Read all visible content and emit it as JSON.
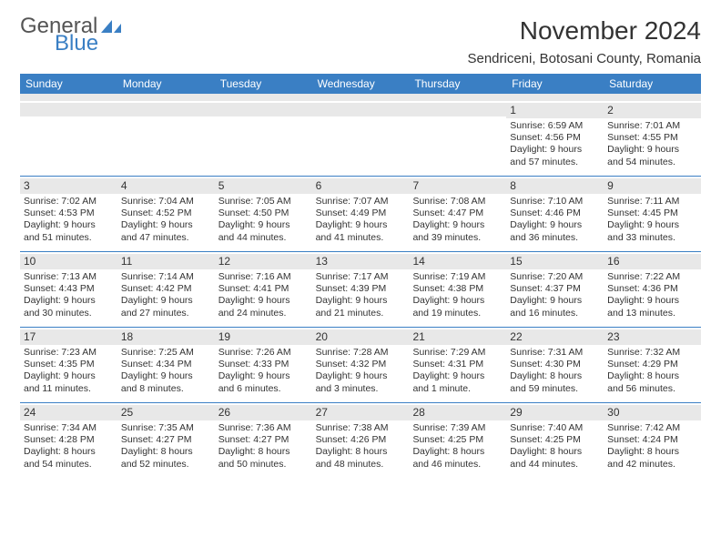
{
  "logo": {
    "word1": "General",
    "word2": "Blue"
  },
  "title": "November 2024",
  "location": "Sendriceni, Botosani County, Romania",
  "colors": {
    "header_bg": "#3a7fc4",
    "header_text": "#ffffff",
    "daynum_bg": "#e8e8e8",
    "border": "#3a7fc4",
    "text": "#333333"
  },
  "daynames": [
    "Sunday",
    "Monday",
    "Tuesday",
    "Wednesday",
    "Thursday",
    "Friday",
    "Saturday"
  ],
  "weeks": [
    [
      null,
      null,
      null,
      null,
      null,
      {
        "n": "1",
        "sr": "Sunrise: 6:59 AM",
        "ss": "Sunset: 4:56 PM",
        "d1": "Daylight: 9 hours",
        "d2": "and 57 minutes."
      },
      {
        "n": "2",
        "sr": "Sunrise: 7:01 AM",
        "ss": "Sunset: 4:55 PM",
        "d1": "Daylight: 9 hours",
        "d2": "and 54 minutes."
      }
    ],
    [
      {
        "n": "3",
        "sr": "Sunrise: 7:02 AM",
        "ss": "Sunset: 4:53 PM",
        "d1": "Daylight: 9 hours",
        "d2": "and 51 minutes."
      },
      {
        "n": "4",
        "sr": "Sunrise: 7:04 AM",
        "ss": "Sunset: 4:52 PM",
        "d1": "Daylight: 9 hours",
        "d2": "and 47 minutes."
      },
      {
        "n": "5",
        "sr": "Sunrise: 7:05 AM",
        "ss": "Sunset: 4:50 PM",
        "d1": "Daylight: 9 hours",
        "d2": "and 44 minutes."
      },
      {
        "n": "6",
        "sr": "Sunrise: 7:07 AM",
        "ss": "Sunset: 4:49 PM",
        "d1": "Daylight: 9 hours",
        "d2": "and 41 minutes."
      },
      {
        "n": "7",
        "sr": "Sunrise: 7:08 AM",
        "ss": "Sunset: 4:47 PM",
        "d1": "Daylight: 9 hours",
        "d2": "and 39 minutes."
      },
      {
        "n": "8",
        "sr": "Sunrise: 7:10 AM",
        "ss": "Sunset: 4:46 PM",
        "d1": "Daylight: 9 hours",
        "d2": "and 36 minutes."
      },
      {
        "n": "9",
        "sr": "Sunrise: 7:11 AM",
        "ss": "Sunset: 4:45 PM",
        "d1": "Daylight: 9 hours",
        "d2": "and 33 minutes."
      }
    ],
    [
      {
        "n": "10",
        "sr": "Sunrise: 7:13 AM",
        "ss": "Sunset: 4:43 PM",
        "d1": "Daylight: 9 hours",
        "d2": "and 30 minutes."
      },
      {
        "n": "11",
        "sr": "Sunrise: 7:14 AM",
        "ss": "Sunset: 4:42 PM",
        "d1": "Daylight: 9 hours",
        "d2": "and 27 minutes."
      },
      {
        "n": "12",
        "sr": "Sunrise: 7:16 AM",
        "ss": "Sunset: 4:41 PM",
        "d1": "Daylight: 9 hours",
        "d2": "and 24 minutes."
      },
      {
        "n": "13",
        "sr": "Sunrise: 7:17 AM",
        "ss": "Sunset: 4:39 PM",
        "d1": "Daylight: 9 hours",
        "d2": "and 21 minutes."
      },
      {
        "n": "14",
        "sr": "Sunrise: 7:19 AM",
        "ss": "Sunset: 4:38 PM",
        "d1": "Daylight: 9 hours",
        "d2": "and 19 minutes."
      },
      {
        "n": "15",
        "sr": "Sunrise: 7:20 AM",
        "ss": "Sunset: 4:37 PM",
        "d1": "Daylight: 9 hours",
        "d2": "and 16 minutes."
      },
      {
        "n": "16",
        "sr": "Sunrise: 7:22 AM",
        "ss": "Sunset: 4:36 PM",
        "d1": "Daylight: 9 hours",
        "d2": "and 13 minutes."
      }
    ],
    [
      {
        "n": "17",
        "sr": "Sunrise: 7:23 AM",
        "ss": "Sunset: 4:35 PM",
        "d1": "Daylight: 9 hours",
        "d2": "and 11 minutes."
      },
      {
        "n": "18",
        "sr": "Sunrise: 7:25 AM",
        "ss": "Sunset: 4:34 PM",
        "d1": "Daylight: 9 hours",
        "d2": "and 8 minutes."
      },
      {
        "n": "19",
        "sr": "Sunrise: 7:26 AM",
        "ss": "Sunset: 4:33 PM",
        "d1": "Daylight: 9 hours",
        "d2": "and 6 minutes."
      },
      {
        "n": "20",
        "sr": "Sunrise: 7:28 AM",
        "ss": "Sunset: 4:32 PM",
        "d1": "Daylight: 9 hours",
        "d2": "and 3 minutes."
      },
      {
        "n": "21",
        "sr": "Sunrise: 7:29 AM",
        "ss": "Sunset: 4:31 PM",
        "d1": "Daylight: 9 hours",
        "d2": "and 1 minute."
      },
      {
        "n": "22",
        "sr": "Sunrise: 7:31 AM",
        "ss": "Sunset: 4:30 PM",
        "d1": "Daylight: 8 hours",
        "d2": "and 59 minutes."
      },
      {
        "n": "23",
        "sr": "Sunrise: 7:32 AM",
        "ss": "Sunset: 4:29 PM",
        "d1": "Daylight: 8 hours",
        "d2": "and 56 minutes."
      }
    ],
    [
      {
        "n": "24",
        "sr": "Sunrise: 7:34 AM",
        "ss": "Sunset: 4:28 PM",
        "d1": "Daylight: 8 hours",
        "d2": "and 54 minutes."
      },
      {
        "n": "25",
        "sr": "Sunrise: 7:35 AM",
        "ss": "Sunset: 4:27 PM",
        "d1": "Daylight: 8 hours",
        "d2": "and 52 minutes."
      },
      {
        "n": "26",
        "sr": "Sunrise: 7:36 AM",
        "ss": "Sunset: 4:27 PM",
        "d1": "Daylight: 8 hours",
        "d2": "and 50 minutes."
      },
      {
        "n": "27",
        "sr": "Sunrise: 7:38 AM",
        "ss": "Sunset: 4:26 PM",
        "d1": "Daylight: 8 hours",
        "d2": "and 48 minutes."
      },
      {
        "n": "28",
        "sr": "Sunrise: 7:39 AM",
        "ss": "Sunset: 4:25 PM",
        "d1": "Daylight: 8 hours",
        "d2": "and 46 minutes."
      },
      {
        "n": "29",
        "sr": "Sunrise: 7:40 AM",
        "ss": "Sunset: 4:25 PM",
        "d1": "Daylight: 8 hours",
        "d2": "and 44 minutes."
      },
      {
        "n": "30",
        "sr": "Sunrise: 7:42 AM",
        "ss": "Sunset: 4:24 PM",
        "d1": "Daylight: 8 hours",
        "d2": "and 42 minutes."
      }
    ]
  ]
}
